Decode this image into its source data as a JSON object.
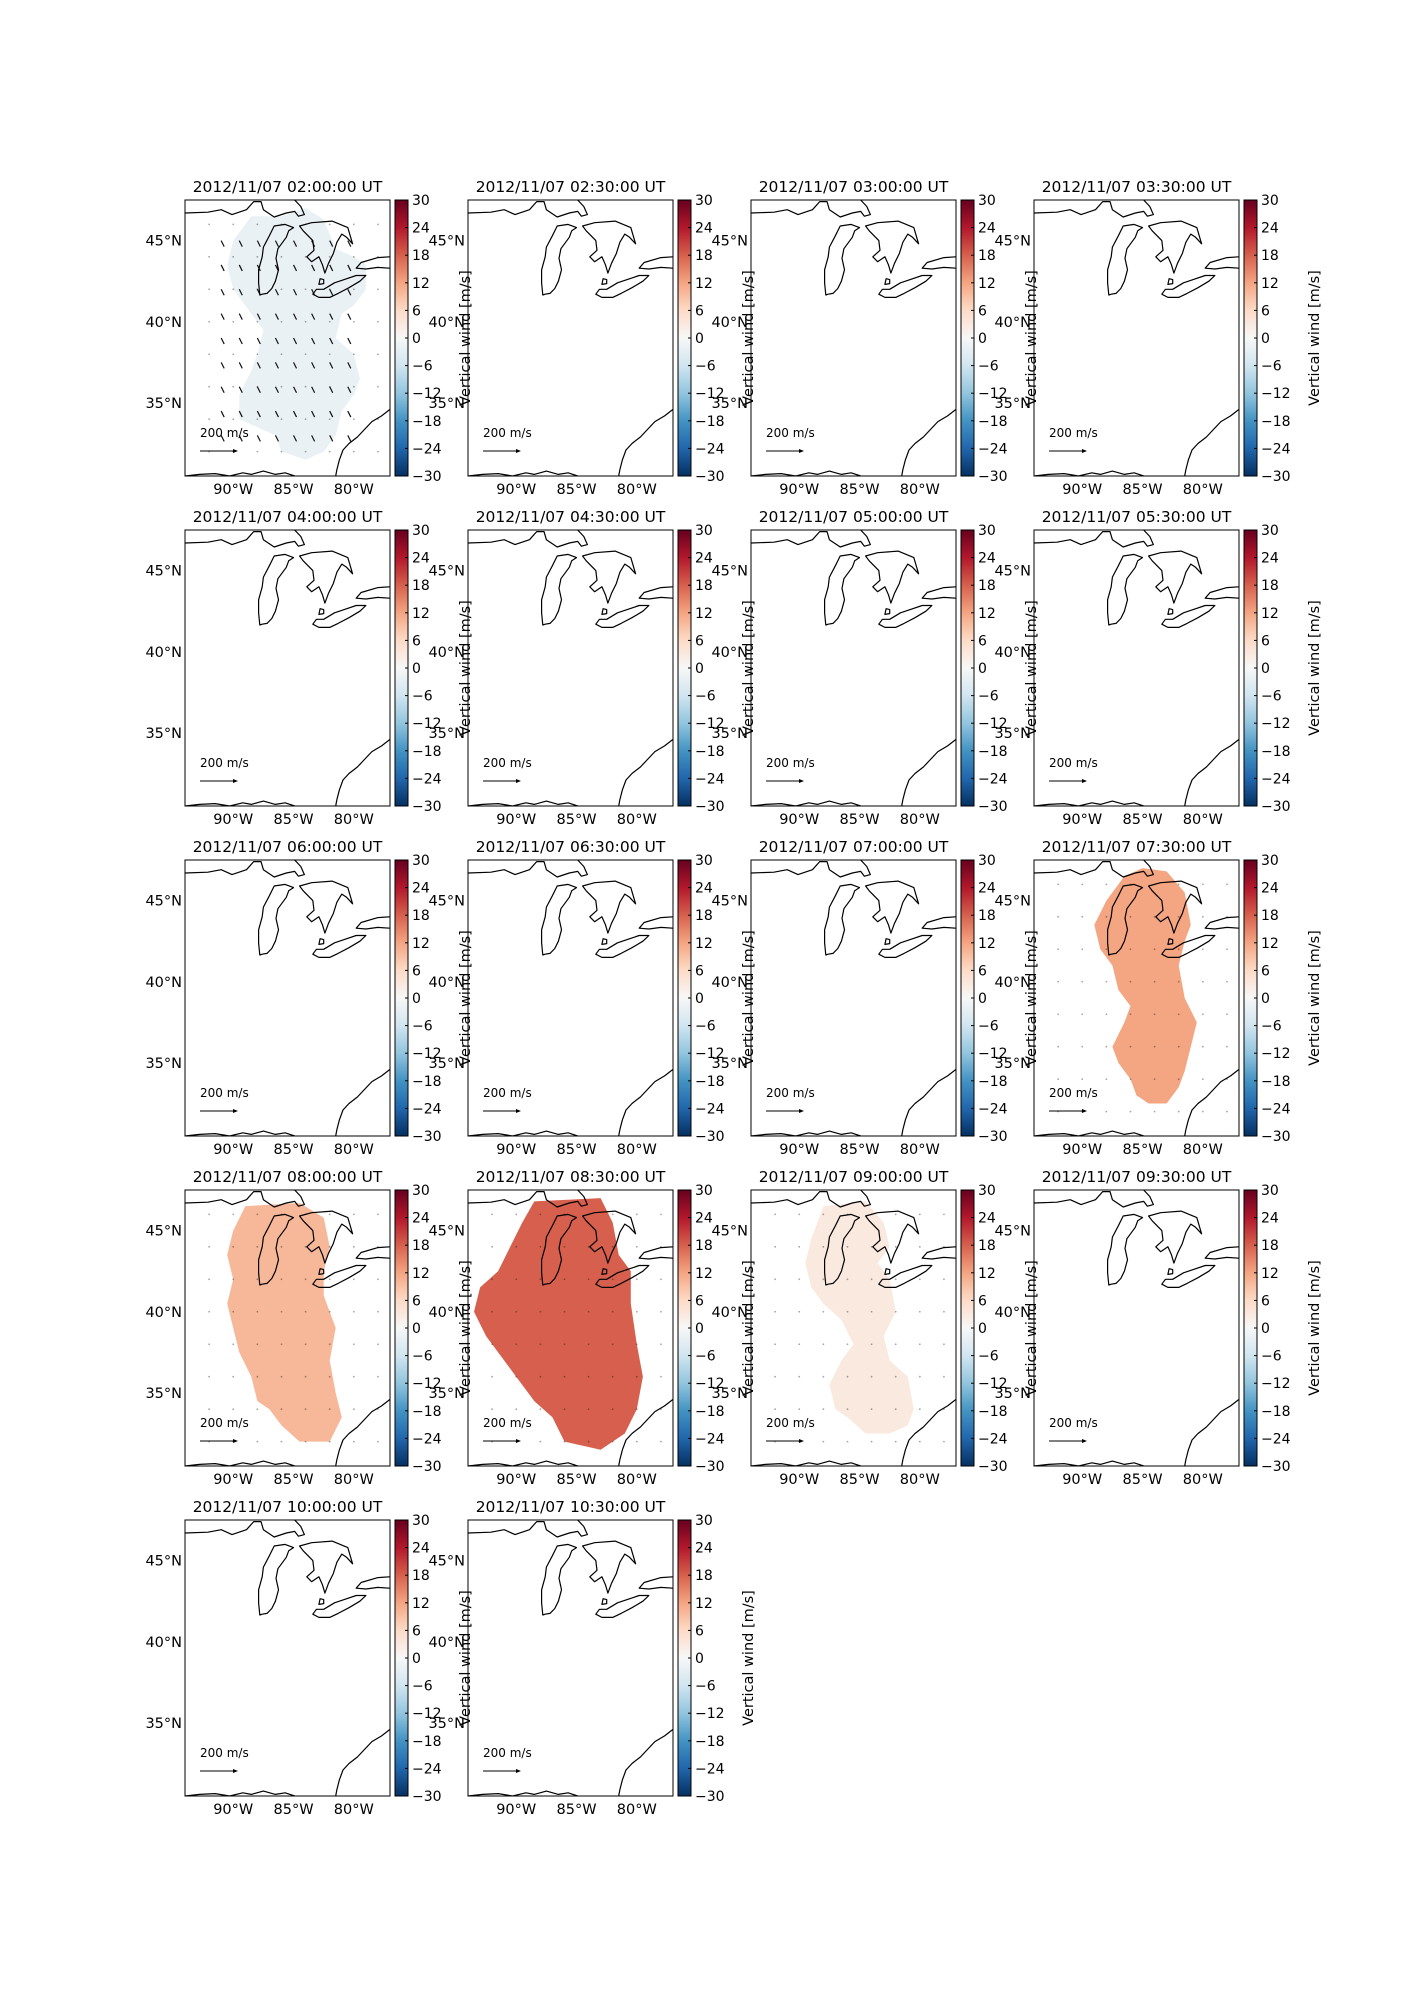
{
  "figure": {
    "colorbar_label": "Vertical wind [m/s]",
    "colorbar_ticks": [
      "30",
      "24",
      "18",
      "12",
      "6",
      "0",
      "−6",
      "−12",
      "−18",
      "−24",
      "−30"
    ],
    "lat_tick_labels": [
      "45°N",
      "40°N",
      "35°N"
    ],
    "lon_tick_labels": [
      "90°W",
      "85°W",
      "80°W"
    ],
    "reference_arrow_label": "200 m/s",
    "colormap": {
      "min_color": "#053061",
      "mid_color": "#f7f7f7",
      "max_color": "#67001f"
    },
    "coastline_color": "#000000"
  },
  "chart_data": {
    "type": "heatmap",
    "description_units": "vertical wind in m/s over the Great Lakes / eastern US region",
    "color_range": [
      -30,
      30
    ],
    "lon_range": [
      -94,
      -77
    ],
    "lat_range": [
      30.5,
      47.5
    ],
    "panels": [
      {
        "title": "2012/11/07 02:00:00 UT",
        "vertical_wind": -2,
        "region": "r1",
        "has_vectors": true
      },
      {
        "title": "2012/11/07 02:30:00 UT",
        "vertical_wind": null
      },
      {
        "title": "2012/11/07 03:00:00 UT",
        "vertical_wind": null
      },
      {
        "title": "2012/11/07 03:30:00 UT",
        "vertical_wind": null
      },
      {
        "title": "2012/11/07 04:00:00 UT",
        "vertical_wind": null
      },
      {
        "title": "2012/11/07 04:30:00 UT",
        "vertical_wind": null
      },
      {
        "title": "2012/11/07 05:00:00 UT",
        "vertical_wind": null
      },
      {
        "title": "2012/11/07 05:30:00 UT",
        "vertical_wind": null
      },
      {
        "title": "2012/11/07 06:00:00 UT",
        "vertical_wind": null
      },
      {
        "title": "2012/11/07 06:30:00 UT",
        "vertical_wind": null
      },
      {
        "title": "2012/11/07 07:00:00 UT",
        "vertical_wind": null
      },
      {
        "title": "2012/11/07 07:30:00 UT",
        "vertical_wind": 12,
        "region": "r2"
      },
      {
        "title": "2012/11/07 08:00:00 UT",
        "vertical_wind": 10,
        "region": "r3"
      },
      {
        "title": "2012/11/07 08:30:00 UT",
        "vertical_wind": 18,
        "region": "r4"
      },
      {
        "title": "2012/11/07 09:00:00 UT",
        "vertical_wind": 3,
        "region": "r5"
      },
      {
        "title": "2012/11/07 09:30:00 UT",
        "vertical_wind": null
      },
      {
        "title": "2012/11/07 10:00:00 UT",
        "vertical_wind": null
      },
      {
        "title": "2012/11/07 10:30:00 UT",
        "vertical_wind": null
      }
    ],
    "regions": {
      "r1": [
        [
          -88.5,
          46.5
        ],
        [
          -86,
          46.5
        ],
        [
          -84,
          47
        ],
        [
          -82.5,
          46.3
        ],
        [
          -81.5,
          44.5
        ],
        [
          -80,
          44
        ],
        [
          -79,
          43.5
        ],
        [
          -79,
          42
        ],
        [
          -80,
          41
        ],
        [
          -81,
          40.5
        ],
        [
          -81.5,
          39
        ],
        [
          -80,
          38
        ],
        [
          -79.5,
          36.5
        ],
        [
          -80,
          35.5
        ],
        [
          -81,
          34.5
        ],
        [
          -81.5,
          33
        ],
        [
          -82.5,
          32
        ],
        [
          -84,
          31.5
        ],
        [
          -86,
          32
        ],
        [
          -86.5,
          33
        ],
        [
          -88,
          33.5
        ],
        [
          -89.5,
          34
        ],
        [
          -89.5,
          35.5
        ],
        [
          -88.5,
          37
        ],
        [
          -88,
          38
        ],
        [
          -87.5,
          39.5
        ],
        [
          -88,
          40
        ],
        [
          -89,
          41
        ],
        [
          -90,
          42
        ],
        [
          -90.5,
          43.5
        ],
        [
          -90,
          45
        ],
        [
          -89,
          46
        ]
      ],
      "r2": [
        [
          -86.5,
          46.5
        ],
        [
          -85,
          47
        ],
        [
          -83,
          46.8
        ],
        [
          -81.5,
          45.5
        ],
        [
          -81,
          43.5
        ],
        [
          -81.5,
          42.5
        ],
        [
          -82,
          41
        ],
        [
          -81.5,
          39
        ],
        [
          -80.5,
          37.5
        ],
        [
          -81,
          36
        ],
        [
          -81.5,
          34.5
        ],
        [
          -82,
          33.5
        ],
        [
          -83,
          32.5
        ],
        [
          -84.5,
          32.5
        ],
        [
          -85.5,
          33
        ],
        [
          -86,
          34
        ],
        [
          -87,
          35
        ],
        [
          -87.5,
          36
        ],
        [
          -86.5,
          37.5
        ],
        [
          -86,
          38.5
        ],
        [
          -87,
          39.5
        ],
        [
          -87.5,
          41
        ],
        [
          -88.5,
          42
        ],
        [
          -89,
          43.5
        ],
        [
          -88,
          45
        ],
        [
          -87,
          46
        ]
      ],
      "r3": [
        [
          -89,
          46.5
        ],
        [
          -84.5,
          46.7
        ],
        [
          -82.5,
          45.8
        ],
        [
          -82,
          44
        ],
        [
          -82.5,
          42.5
        ],
        [
          -82.5,
          41
        ],
        [
          -81.5,
          39
        ],
        [
          -82,
          37
        ],
        [
          -81.5,
          35
        ],
        [
          -81,
          33.5
        ],
        [
          -82,
          32
        ],
        [
          -84.5,
          32
        ],
        [
          -86,
          33
        ],
        [
          -87,
          34
        ],
        [
          -88,
          34.5
        ],
        [
          -88.5,
          36
        ],
        [
          -89.5,
          37.5
        ],
        [
          -90,
          39
        ],
        [
          -90.5,
          40.5
        ],
        [
          -90,
          42
        ],
        [
          -90.5,
          43.5
        ],
        [
          -90,
          45
        ]
      ],
      "r4": [
        [
          -88.5,
          46.8
        ],
        [
          -83,
          47
        ],
        [
          -82,
          45.5
        ],
        [
          -81.5,
          43.5
        ],
        [
          -80.5,
          42.5
        ],
        [
          -80.5,
          40.5
        ],
        [
          -80,
          38
        ],
        [
          -79.5,
          36
        ],
        [
          -80,
          34
        ],
        [
          -81,
          32.5
        ],
        [
          -83,
          31.5
        ],
        [
          -86,
          32
        ],
        [
          -87,
          33.5
        ],
        [
          -88.5,
          34.5
        ],
        [
          -90,
          36
        ],
        [
          -91,
          37
        ],
        [
          -92.5,
          38.5
        ],
        [
          -93.5,
          40
        ],
        [
          -93,
          41.5
        ],
        [
          -91.5,
          42.5
        ],
        [
          -90.5,
          44
        ],
        [
          -89.5,
          45.5
        ]
      ],
      "r5": [
        [
          -88,
          46.5
        ],
        [
          -84.5,
          46.8
        ],
        [
          -83,
          45.5
        ],
        [
          -82.5,
          44
        ],
        [
          -83.5,
          43
        ],
        [
          -82.5,
          42
        ],
        [
          -82,
          40
        ],
        [
          -83,
          38.5
        ],
        [
          -82.5,
          37
        ],
        [
          -81,
          36
        ],
        [
          -80.5,
          34
        ],
        [
          -81,
          33
        ],
        [
          -82.5,
          32.5
        ],
        [
          -84.5,
          32.5
        ],
        [
          -86,
          33.5
        ],
        [
          -87,
          34
        ],
        [
          -87.5,
          35.5
        ],
        [
          -86.5,
          37
        ],
        [
          -85.5,
          38
        ],
        [
          -86.5,
          39.5
        ],
        [
          -88,
          40.5
        ],
        [
          -89,
          41.5
        ],
        [
          -89.5,
          43
        ],
        [
          -89,
          44.5
        ]
      ]
    }
  }
}
